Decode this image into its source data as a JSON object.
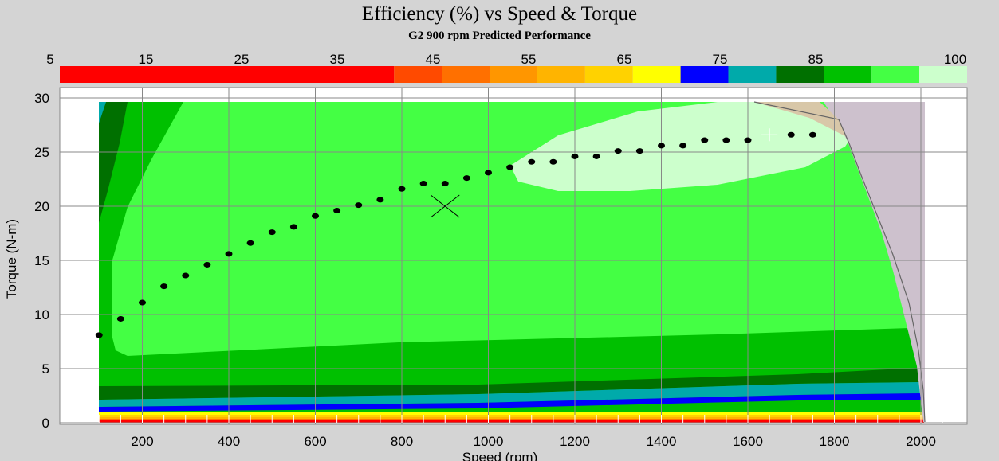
{
  "title": "Efficiency (%) vs Speed & Torque",
  "subtitle": "G2 900 rpm Predicted Performance",
  "colorbar": {
    "tick_labels": [
      "5",
      "15",
      "25",
      "35",
      "45",
      "55",
      "65",
      "75",
      "85",
      "100"
    ],
    "segments": [
      {
        "from": 5,
        "to": 40,
        "color": "#ff0000"
      },
      {
        "from": 40,
        "to": 45,
        "color": "#ff4a00"
      },
      {
        "from": 45,
        "to": 50,
        "color": "#ff7000"
      },
      {
        "from": 50,
        "to": 55,
        "color": "#ff9600"
      },
      {
        "from": 55,
        "to": 60,
        "color": "#ffb400"
      },
      {
        "from": 60,
        "to": 65,
        "color": "#ffd200"
      },
      {
        "from": 65,
        "to": 70,
        "color": "#ffff00"
      },
      {
        "from": 70,
        "to": 75,
        "color": "#0000ff"
      },
      {
        "from": 75,
        "to": 80,
        "color": "#00aaaa"
      },
      {
        "from": 80,
        "to": 85,
        "color": "#007000"
      },
      {
        "from": 85,
        "to": 90,
        "color": "#00c000"
      },
      {
        "from": 90,
        "to": 95,
        "color": "#44ff44"
      },
      {
        "from": 95,
        "to": 100,
        "color": "#ccffcc"
      }
    ]
  },
  "chart_data": {
    "type": "contour",
    "title": "Efficiency (%) vs Speed & Torque",
    "subtitle": "G2 900 rpm Predicted Performance",
    "xlabel": "Speed (rpm)",
    "ylabel": "Torque (N-m)",
    "xlim": [
      0,
      2100
    ],
    "ylim": [
      0,
      30
    ],
    "x_ticks": [
      200,
      400,
      600,
      800,
      1000,
      1200,
      1400,
      1600,
      1800,
      2000
    ],
    "y_ticks": [
      0,
      5,
      10,
      15,
      20,
      25,
      30
    ],
    "grid": true,
    "operating_points": [
      {
        "x": 100,
        "y": 8.1
      },
      {
        "x": 150,
        "y": 9.6
      },
      {
        "x": 200,
        "y": 11.1
      },
      {
        "x": 250,
        "y": 12.6
      },
      {
        "x": 300,
        "y": 13.6
      },
      {
        "x": 350,
        "y": 14.6
      },
      {
        "x": 400,
        "y": 15.6
      },
      {
        "x": 450,
        "y": 16.6
      },
      {
        "x": 500,
        "y": 17.6
      },
      {
        "x": 550,
        "y": 18.1
      },
      {
        "x": 600,
        "y": 19.1
      },
      {
        "x": 650,
        "y": 19.6
      },
      {
        "x": 700,
        "y": 20.1
      },
      {
        "x": 750,
        "y": 20.6
      },
      {
        "x": 800,
        "y": 21.6
      },
      {
        "x": 850,
        "y": 22.1
      },
      {
        "x": 900,
        "y": 22.1
      },
      {
        "x": 950,
        "y": 22.6
      },
      {
        "x": 1000,
        "y": 23.1
      },
      {
        "x": 1050,
        "y": 23.6
      },
      {
        "x": 1100,
        "y": 24.1
      },
      {
        "x": 1150,
        "y": 24.1
      },
      {
        "x": 1200,
        "y": 24.6
      },
      {
        "x": 1250,
        "y": 24.6
      },
      {
        "x": 1300,
        "y": 25.1
      },
      {
        "x": 1350,
        "y": 25.1
      },
      {
        "x": 1400,
        "y": 25.6
      },
      {
        "x": 1450,
        "y": 25.6
      },
      {
        "x": 1500,
        "y": 26.1
      },
      {
        "x": 1550,
        "y": 26.1
      },
      {
        "x": 1600,
        "y": 26.1
      },
      {
        "x": 1700,
        "y": 26.6
      },
      {
        "x": 1750,
        "y": 26.6
      }
    ],
    "rated_point": {
      "x": 900,
      "y": 20
    },
    "plus_marker": {
      "x": 1650,
      "y": 26.6
    }
  }
}
